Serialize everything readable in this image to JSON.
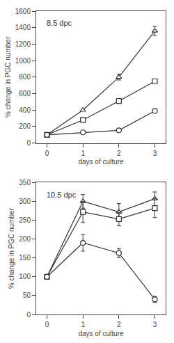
{
  "chart_data": [
    {
      "type": "line",
      "annotation": "8.5 dpc",
      "xlabel": "days of culture",
      "ylabel": "% change in PGC number",
      "x": [
        0,
        1,
        2,
        3
      ],
      "series": [
        {
          "marker": "triangle",
          "color": "#333333",
          "values": [
            100,
            400,
            800,
            1360
          ],
          "yerr": [
            0,
            0,
            35,
            55
          ]
        },
        {
          "marker": "square",
          "color": "#333333",
          "values": [
            100,
            280,
            510,
            750
          ],
          "yerr": [
            0,
            0,
            0,
            0
          ]
        },
        {
          "marker": "circle",
          "color": "#333333",
          "values": [
            100,
            130,
            155,
            390
          ],
          "yerr": [
            0,
            0,
            0,
            0
          ]
        }
      ],
      "xlim": [
        -0.3,
        3.3
      ],
      "xticks": [
        0,
        1,
        2,
        3
      ],
      "ylim": [
        0,
        1600
      ],
      "yticks": [
        0,
        200,
        400,
        600,
        800,
        1000,
        1200,
        1400,
        1600
      ],
      "grid": false
    },
    {
      "type": "line",
      "annotation": "10.5 dpc",
      "xlabel": "days of culture",
      "ylabel": "% change in PGC number",
      "x": [
        0,
        1,
        2,
        3
      ],
      "series": [
        {
          "marker": "triangle",
          "color": "#333333",
          "values": [
            100,
            300,
            272,
            307
          ],
          "yerr": [
            0,
            18,
            22,
            18
          ]
        },
        {
          "marker": "square",
          "color": "#333333",
          "values": [
            100,
            272,
            253,
            282
          ],
          "yerr": [
            0,
            28,
            18,
            25
          ]
        },
        {
          "marker": "circle",
          "color": "#333333",
          "values": [
            100,
            190,
            163,
            40
          ],
          "yerr": [
            0,
            22,
            12,
            8
          ]
        }
      ],
      "xlim": [
        -0.3,
        3.3
      ],
      "xticks": [
        0,
        1,
        2,
        3
      ],
      "ylim": [
        0,
        350
      ],
      "yticks": [
        0,
        50,
        100,
        150,
        200,
        250,
        300,
        350
      ],
      "grid": false
    }
  ]
}
